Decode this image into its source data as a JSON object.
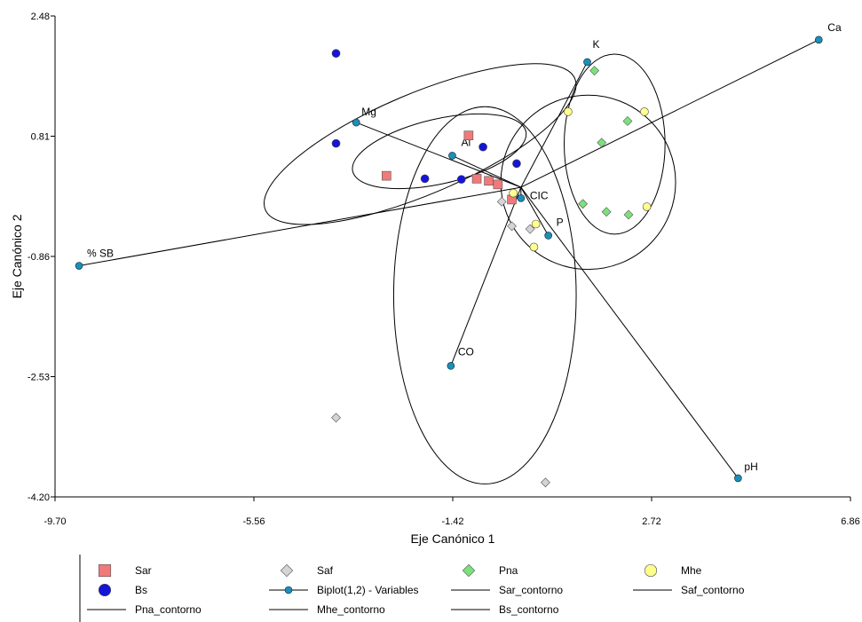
{
  "chart_data": {
    "type": "scatter",
    "xlabel": "Eje Canónico 1",
    "ylabel": "Eje Canónico 2",
    "xlim": [
      -9.7,
      6.86
    ],
    "ylim": [
      -4.2,
      2.48
    ],
    "xticks": [
      "-9.70",
      "-5.56",
      "-1.42",
      "2.72",
      "6.86"
    ],
    "yticks": [
      "2.48",
      "0.81",
      "-0.86",
      "-2.53",
      "-4.20"
    ],
    "colors": {
      "Sar": "#f07a7a",
      "Bs": "#1515d8",
      "Saf": "#d4d4d4",
      "Pna": "#7be27b",
      "Mhe": "#ffff8c",
      "Biplot": "#1b8fb8",
      "line": "#000000"
    },
    "series": [
      {
        "name": "Sar",
        "marker": "square",
        "points": [
          [
            -1.09,
            0.82
          ],
          [
            -2.8,
            0.26
          ],
          [
            -0.92,
            0.22
          ],
          [
            -0.48,
            0.14
          ],
          [
            -0.19,
            -0.07
          ],
          [
            -0.67,
            0.19
          ]
        ]
      },
      {
        "name": "Bs",
        "marker": "circle",
        "points": [
          [
            -3.85,
            1.96
          ],
          [
            -3.85,
            0.71
          ],
          [
            -0.79,
            0.66
          ],
          [
            -0.09,
            0.43
          ],
          [
            -1.24,
            0.21
          ],
          [
            -2.0,
            0.22
          ]
        ]
      },
      {
        "name": "Saf",
        "marker": "diamond",
        "points": [
          [
            -0.4,
            -0.1
          ],
          [
            -0.19,
            -0.44
          ],
          [
            0.19,
            -0.48
          ],
          [
            -3.85,
            -3.1
          ],
          [
            0.51,
            -4.0
          ]
        ]
      },
      {
        "name": "Pna",
        "marker": "diamond",
        "points": [
          [
            1.53,
            1.72
          ],
          [
            2.22,
            1.02
          ],
          [
            1.68,
            0.72
          ],
          [
            1.29,
            -0.13
          ],
          [
            1.78,
            -0.24
          ],
          [
            2.24,
            -0.28
          ]
        ]
      },
      {
        "name": "Mhe",
        "marker": "circle",
        "points": [
          [
            0.98,
            1.15
          ],
          [
            2.57,
            1.15
          ],
          [
            -0.16,
            0.02
          ],
          [
            2.62,
            -0.17
          ],
          [
            0.31,
            -0.41
          ],
          [
            0.27,
            -0.73
          ]
        ]
      }
    ],
    "biplot": {
      "name": "Biplot(1,2) - Variables",
      "origin": [
        0.0,
        0.1
      ],
      "variables": [
        {
          "label": "Ca",
          "x": 6.2,
          "y": 2.15
        },
        {
          "label": "K",
          "x": 1.38,
          "y": 1.84
        },
        {
          "label": "Mg",
          "x": -3.43,
          "y": 1.0
        },
        {
          "label": "Al",
          "x": -1.43,
          "y": 0.54
        },
        {
          "label": "CIC",
          "x": 0.0,
          "y": -0.05
        },
        {
          "label": "P",
          "x": 0.57,
          "y": -0.57
        },
        {
          "label": "% SB",
          "x": -9.2,
          "y": -0.99
        },
        {
          "label": "CO",
          "x": -1.46,
          "y": -2.38
        },
        {
          "label": "pH",
          "x": 4.52,
          "y": -3.94
        }
      ]
    },
    "contours": [
      {
        "name": "Sar_contorno",
        "cx": -2.1,
        "cy": 0.7,
        "rx": 3.5,
        "ry": 0.7,
        "rot": 23
      },
      {
        "name": "Saf_contorno",
        "cx": -0.75,
        "cy": -1.4,
        "rx": 1.9,
        "ry": 2.62,
        "rot": 0
      },
      {
        "name": "Pna_contorno",
        "cx": 1.95,
        "cy": 0.7,
        "rx": 1.05,
        "ry": 1.25,
        "rot": 0
      },
      {
        "name": "Mhe_contorno",
        "cx": 1.4,
        "cy": 0.17,
        "rx": 1.82,
        "ry": 1.21,
        "rot": 0
      },
      {
        "name": "Bs_contorno",
        "cx": -1.7,
        "cy": 0.6,
        "rx": 1.85,
        "ry": 0.45,
        "rot": 13
      }
    ],
    "legend": {
      "position": "bottom",
      "entries": [
        {
          "label": "Sar",
          "symbol": "square",
          "color": "#f07a7a"
        },
        {
          "label": "Saf",
          "symbol": "diamond",
          "color": "#d4d4d4"
        },
        {
          "label": "Pna",
          "symbol": "diamond",
          "color": "#7be27b"
        },
        {
          "label": "Mhe",
          "symbol": "circle",
          "color": "#ffff8c"
        },
        {
          "label": "Bs",
          "symbol": "circle",
          "color": "#1515d8"
        },
        {
          "label": "Biplot(1,2) - Variables",
          "symbol": "biplot",
          "color": "#1b8fb8"
        },
        {
          "label": "Sar_contorno",
          "symbol": "line",
          "color": "#000000"
        },
        {
          "label": "Saf_contorno",
          "symbol": "line",
          "color": "#000000"
        },
        {
          "label": "Pna_contorno",
          "symbol": "line",
          "color": "#000000"
        },
        {
          "label": "Mhe_contorno",
          "symbol": "line",
          "color": "#000000"
        },
        {
          "label": "Bs_contorno",
          "symbol": "line",
          "color": "#000000"
        }
      ]
    }
  }
}
